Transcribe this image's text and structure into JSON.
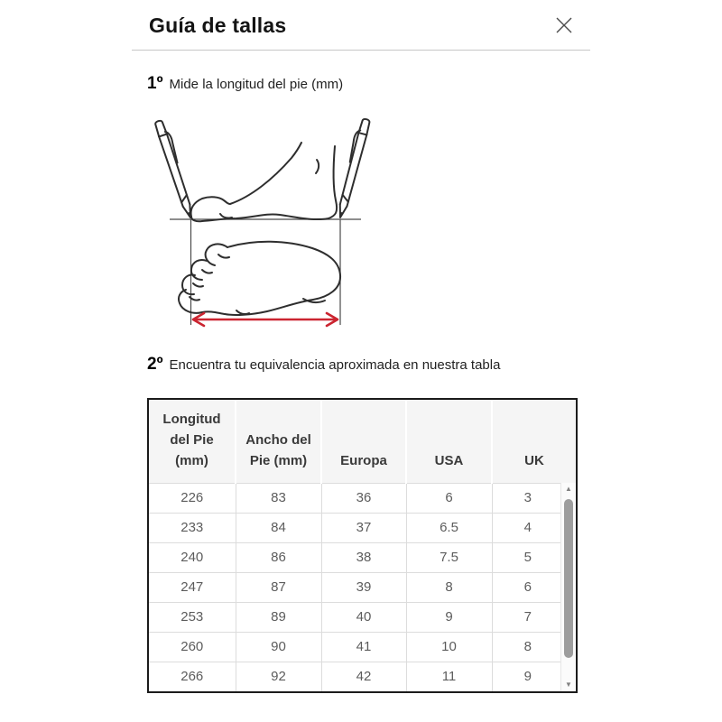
{
  "modal": {
    "title": "Guía de tallas"
  },
  "icons": {
    "close": "✕",
    "scroll_up": "▲",
    "scroll_down": "▼"
  },
  "steps": [
    {
      "number": "1º",
      "text": "Mide la longitud del pie (mm)"
    },
    {
      "number": "2º",
      "text": "Encuentra tu equivalencia aproximada en nuestra tabla"
    }
  ],
  "size_table": {
    "columns": [
      "Longitud del Pie (mm)",
      "Ancho del Pie (mm)",
      "Europa",
      "USA",
      "UK"
    ],
    "rows": [
      [
        "226",
        "83",
        "36",
        "6",
        "3"
      ],
      [
        "233",
        "84",
        "37",
        "6.5",
        "4"
      ],
      [
        "240",
        "86",
        "38",
        "7.5",
        "5"
      ],
      [
        "247",
        "87",
        "39",
        "8",
        "6"
      ],
      [
        "253",
        "89",
        "40",
        "9",
        "7"
      ],
      [
        "260",
        "90",
        "41",
        "10",
        "8"
      ],
      [
        "266",
        "92",
        "42",
        "11",
        "9"
      ]
    ]
  },
  "colors": {
    "accent_red": "#cb2430",
    "header_bg": "#f5f5f5",
    "table_border": "#1b1b1b",
    "cell_border": "#dcdcdc",
    "header_text": "#3a3a3a",
    "body_text": "#5c5c5c",
    "title_text": "#141414",
    "divider": "#c6c6c6",
    "sketch_stroke": "#2e2e2e",
    "scroll_thumb": "#9d9d9d"
  }
}
